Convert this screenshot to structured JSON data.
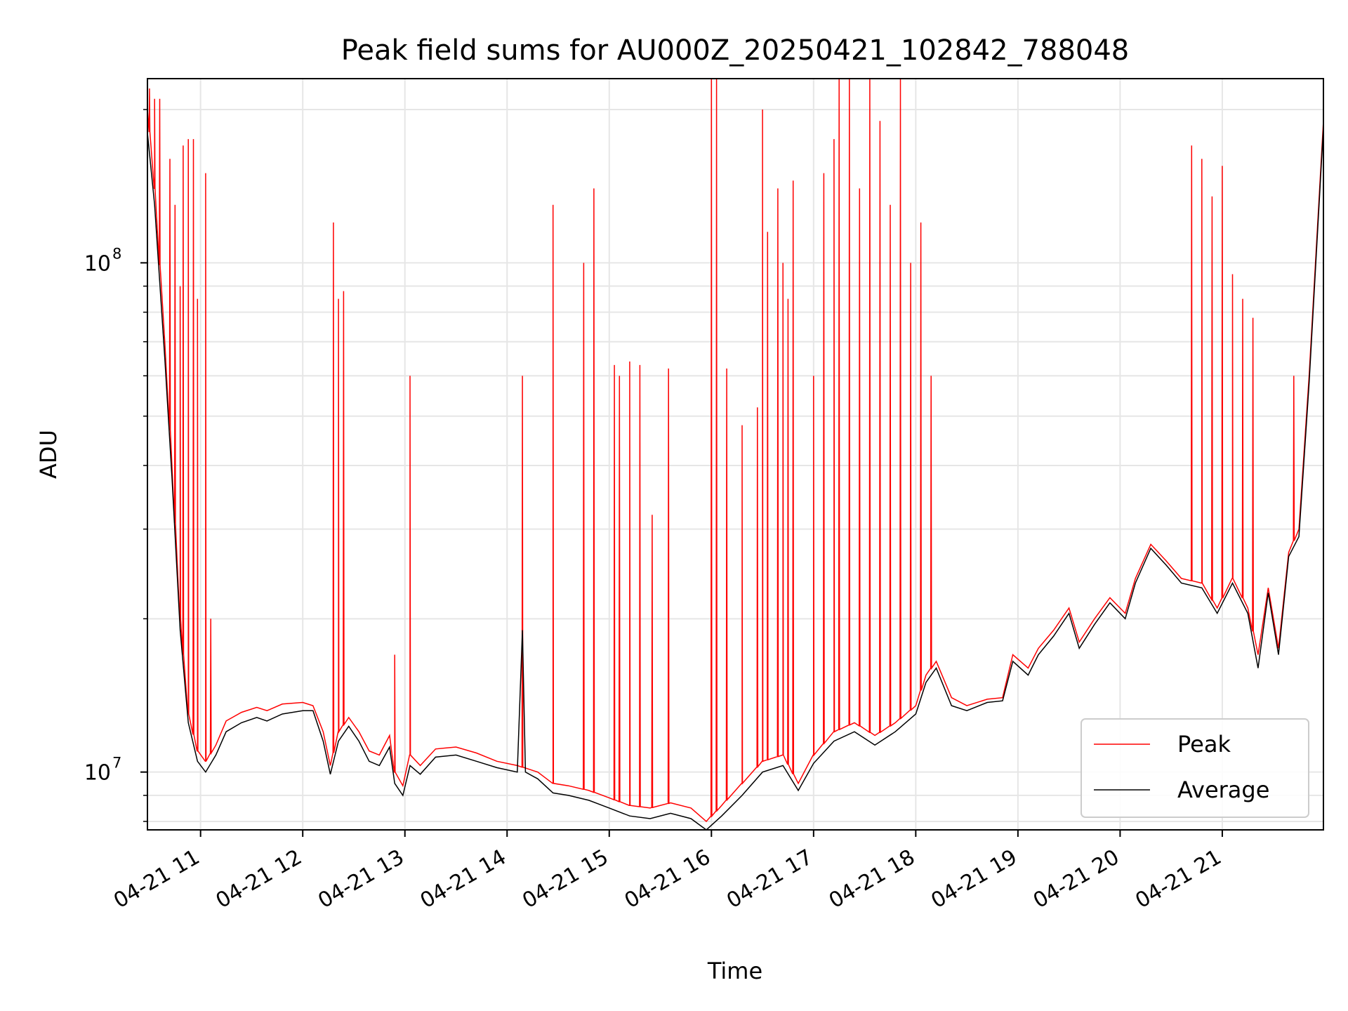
{
  "chart_data": {
    "type": "line",
    "title": "Peak field sums for AU000Z_20250421_102842_788048",
    "xlabel": "Time",
    "ylabel": "ADU",
    "y_scale": "log",
    "x_unit": "hours (decimal, 2025-04-21)",
    "xlim": [
      10.48,
      21.99
    ],
    "ylim": [
      7700000,
      230000000
    ],
    "x_ticks": [
      {
        "value": 11,
        "label": "04-21 11"
      },
      {
        "value": 12,
        "label": "04-21 12"
      },
      {
        "value": 13,
        "label": "04-21 13"
      },
      {
        "value": 14,
        "label": "04-21 14"
      },
      {
        "value": 15,
        "label": "04-21 15"
      },
      {
        "value": 16,
        "label": "04-21 16"
      },
      {
        "value": 17,
        "label": "04-21 17"
      },
      {
        "value": 18,
        "label": "04-21 18"
      },
      {
        "value": 19,
        "label": "04-21 19"
      },
      {
        "value": 20,
        "label": "04-21 20"
      },
      {
        "value": 21,
        "label": "04-21 21"
      }
    ],
    "y_ticks_major": [
      {
        "value": 10000000,
        "base": "10",
        "exp": "7"
      },
      {
        "value": 100000000,
        "base": "10",
        "exp": "8"
      }
    ],
    "grid": true,
    "legend_position": "lower right",
    "series": [
      {
        "name": "Peak",
        "color": "#ff0000",
        "baseline": [
          [
            10.48,
            200000000
          ],
          [
            10.55,
            140000000
          ],
          [
            10.65,
            70000000
          ],
          [
            10.72,
            40000000
          ],
          [
            10.8,
            20000000
          ],
          [
            10.88,
            13000000
          ],
          [
            10.97,
            11000000
          ],
          [
            11.05,
            10500000
          ],
          [
            11.15,
            11300000
          ],
          [
            11.25,
            12600000
          ],
          [
            11.4,
            13100000
          ],
          [
            11.55,
            13400000
          ],
          [
            11.65,
            13200000
          ],
          [
            11.8,
            13600000
          ],
          [
            12.0,
            13700000
          ],
          [
            12.1,
            13500000
          ],
          [
            12.2,
            12000000
          ],
          [
            12.27,
            10300000
          ],
          [
            12.35,
            12000000
          ],
          [
            12.45,
            12800000
          ],
          [
            12.55,
            12000000
          ],
          [
            12.65,
            11000000
          ],
          [
            12.75,
            10800000
          ],
          [
            12.85,
            11800000
          ],
          [
            12.9,
            10000000
          ],
          [
            12.98,
            9400000
          ],
          [
            13.05,
            10800000
          ],
          [
            13.15,
            10300000
          ],
          [
            13.3,
            11100000
          ],
          [
            13.5,
            11200000
          ],
          [
            13.7,
            10900000
          ],
          [
            13.9,
            10500000
          ],
          [
            14.1,
            10300000
          ],
          [
            14.3,
            10000000
          ],
          [
            14.45,
            9500000
          ],
          [
            14.6,
            9400000
          ],
          [
            14.8,
            9200000
          ],
          [
            15.0,
            8900000
          ],
          [
            15.2,
            8600000
          ],
          [
            15.4,
            8500000
          ],
          [
            15.6,
            8700000
          ],
          [
            15.8,
            8500000
          ],
          [
            15.95,
            8000000
          ],
          [
            16.1,
            8600000
          ],
          [
            16.3,
            9500000
          ],
          [
            16.5,
            10500000
          ],
          [
            16.7,
            10800000
          ],
          [
            16.85,
            9500000
          ],
          [
            17.0,
            10800000
          ],
          [
            17.2,
            12000000
          ],
          [
            17.4,
            12500000
          ],
          [
            17.6,
            11800000
          ],
          [
            17.8,
            12500000
          ],
          [
            18.0,
            13500000
          ],
          [
            18.1,
            15500000
          ],
          [
            18.2,
            16500000
          ],
          [
            18.35,
            14000000
          ],
          [
            18.5,
            13500000
          ],
          [
            18.7,
            13900000
          ],
          [
            18.85,
            14000000
          ],
          [
            18.95,
            17000000
          ],
          [
            19.1,
            16000000
          ],
          [
            19.2,
            17500000
          ],
          [
            19.35,
            19000000
          ],
          [
            19.5,
            21000000
          ],
          [
            19.6,
            18000000
          ],
          [
            19.75,
            20000000
          ],
          [
            19.9,
            22000000
          ],
          [
            20.05,
            20500000
          ],
          [
            20.15,
            24000000
          ],
          [
            20.3,
            28000000
          ],
          [
            20.45,
            26000000
          ],
          [
            20.6,
            24000000
          ],
          [
            20.8,
            23500000
          ],
          [
            20.95,
            21000000
          ],
          [
            21.1,
            24000000
          ],
          [
            21.25,
            21000000
          ],
          [
            21.35,
            17000000
          ],
          [
            21.45,
            23000000
          ],
          [
            21.55,
            17500000
          ],
          [
            21.65,
            27000000
          ],
          [
            21.75,
            30000000
          ],
          [
            21.85,
            60000000
          ],
          [
            21.99,
            190000000
          ]
        ],
        "spikes": [
          [
            10.5,
            220000000
          ],
          [
            10.55,
            210000000
          ],
          [
            10.6,
            210000000
          ],
          [
            10.7,
            160000000
          ],
          [
            10.75,
            130000000
          ],
          [
            10.8,
            90000000
          ],
          [
            10.83,
            170000000
          ],
          [
            10.88,
            175000000
          ],
          [
            10.93,
            175000000
          ],
          [
            10.97,
            85000000
          ],
          [
            11.05,
            150000000
          ],
          [
            11.1,
            20000000
          ],
          [
            12.3,
            120000000
          ],
          [
            12.35,
            85000000
          ],
          [
            12.4,
            88000000
          ],
          [
            12.9,
            17000000
          ],
          [
            13.05,
            60000000
          ],
          [
            14.15,
            60000000
          ],
          [
            14.45,
            130000000
          ],
          [
            14.75,
            100000000
          ],
          [
            14.85,
            140000000
          ],
          [
            15.05,
            63000000
          ],
          [
            15.1,
            60000000
          ],
          [
            15.2,
            64000000
          ],
          [
            15.3,
            63000000
          ],
          [
            15.42,
            32000000
          ],
          [
            15.58,
            62000000
          ],
          [
            16.0,
            230000000
          ],
          [
            16.05,
            230000000
          ],
          [
            16.15,
            62000000
          ],
          [
            16.3,
            48000000
          ],
          [
            16.45,
            52000000
          ],
          [
            16.5,
            200000000
          ],
          [
            16.55,
            115000000
          ],
          [
            16.65,
            140000000
          ],
          [
            16.7,
            100000000
          ],
          [
            16.75,
            85000000
          ],
          [
            16.8,
            145000000
          ],
          [
            17.0,
            60000000
          ],
          [
            17.1,
            150000000
          ],
          [
            17.2,
            175000000
          ],
          [
            17.25,
            230000000
          ],
          [
            17.35,
            230000000
          ],
          [
            17.45,
            140000000
          ],
          [
            17.55,
            230000000
          ],
          [
            17.65,
            190000000
          ],
          [
            17.75,
            130000000
          ],
          [
            17.85,
            230000000
          ],
          [
            17.95,
            100000000
          ],
          [
            18.05,
            120000000
          ],
          [
            18.15,
            60000000
          ],
          [
            20.7,
            170000000
          ],
          [
            20.8,
            160000000
          ],
          [
            20.9,
            135000000
          ],
          [
            21.0,
            155000000
          ],
          [
            21.1,
            95000000
          ],
          [
            21.2,
            85000000
          ],
          [
            21.3,
            78000000
          ],
          [
            21.7,
            60000000
          ]
        ]
      },
      {
        "name": "Average",
        "color": "#000000",
        "points": [
          [
            10.48,
            180000000
          ],
          [
            10.55,
            130000000
          ],
          [
            10.65,
            65000000
          ],
          [
            10.72,
            38000000
          ],
          [
            10.8,
            19000000
          ],
          [
            10.88,
            12500000
          ],
          [
            10.97,
            10500000
          ],
          [
            11.05,
            10000000
          ],
          [
            11.15,
            10800000
          ],
          [
            11.25,
            12000000
          ],
          [
            11.4,
            12500000
          ],
          [
            11.55,
            12800000
          ],
          [
            11.65,
            12600000
          ],
          [
            11.8,
            13000000
          ],
          [
            12.0,
            13200000
          ],
          [
            12.1,
            13200000
          ],
          [
            12.2,
            11500000
          ],
          [
            12.27,
            9900000
          ],
          [
            12.35,
            11500000
          ],
          [
            12.45,
            12300000
          ],
          [
            12.55,
            11500000
          ],
          [
            12.65,
            10500000
          ],
          [
            12.75,
            10300000
          ],
          [
            12.85,
            11200000
          ],
          [
            12.9,
            9500000
          ],
          [
            12.98,
            9000000
          ],
          [
            13.05,
            10300000
          ],
          [
            13.15,
            9900000
          ],
          [
            13.3,
            10700000
          ],
          [
            13.5,
            10800000
          ],
          [
            13.7,
            10500000
          ],
          [
            13.9,
            10200000
          ],
          [
            14.1,
            10000000
          ],
          [
            14.15,
            19000000
          ],
          [
            14.18,
            10000000
          ],
          [
            14.3,
            9700000
          ],
          [
            14.45,
            9100000
          ],
          [
            14.6,
            9000000
          ],
          [
            14.8,
            8800000
          ],
          [
            15.0,
            8500000
          ],
          [
            15.2,
            8200000
          ],
          [
            15.4,
            8100000
          ],
          [
            15.6,
            8300000
          ],
          [
            15.8,
            8100000
          ],
          [
            15.95,
            7700000
          ],
          [
            16.1,
            8200000
          ],
          [
            16.3,
            9000000
          ],
          [
            16.5,
            10000000
          ],
          [
            16.7,
            10300000
          ],
          [
            16.85,
            9200000
          ],
          [
            17.0,
            10400000
          ],
          [
            17.2,
            11500000
          ],
          [
            17.4,
            12000000
          ],
          [
            17.6,
            11300000
          ],
          [
            17.8,
            12000000
          ],
          [
            18.0,
            13000000
          ],
          [
            18.1,
            15000000
          ],
          [
            18.2,
            16000000
          ],
          [
            18.35,
            13500000
          ],
          [
            18.5,
            13200000
          ],
          [
            18.7,
            13700000
          ],
          [
            18.85,
            13800000
          ],
          [
            18.95,
            16500000
          ],
          [
            19.1,
            15500000
          ],
          [
            19.2,
            17000000
          ],
          [
            19.35,
            18500000
          ],
          [
            19.5,
            20500000
          ],
          [
            19.6,
            17500000
          ],
          [
            19.75,
            19500000
          ],
          [
            19.9,
            21500000
          ],
          [
            20.05,
            20000000
          ],
          [
            20.15,
            23500000
          ],
          [
            20.3,
            27500000
          ],
          [
            20.45,
            25500000
          ],
          [
            20.6,
            23500000
          ],
          [
            20.8,
            23000000
          ],
          [
            20.95,
            20500000
          ],
          [
            21.1,
            23500000
          ],
          [
            21.25,
            20500000
          ],
          [
            21.35,
            16000000
          ],
          [
            21.45,
            22500000
          ],
          [
            21.55,
            17000000
          ],
          [
            21.65,
            26500000
          ],
          [
            21.75,
            29000000
          ],
          [
            21.85,
            58000000
          ],
          [
            21.99,
            185000000
          ]
        ]
      }
    ]
  }
}
